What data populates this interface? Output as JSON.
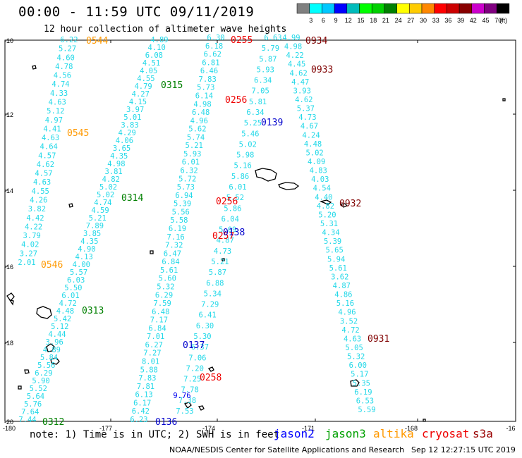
{
  "header": {
    "title": "00:00 - 11:59 UTC 09/11/2019",
    "subtitle": "12 hour collection of altimeter wave heights"
  },
  "colorbar": {
    "colors": [
      "#808080",
      "#00ffff",
      "#00c8ff",
      "#0000ff",
      "#00bbbb",
      "#00ff00",
      "#00d000",
      "#008000",
      "#ffff00",
      "#ffcc00",
      "#ff8800",
      "#ff0000",
      "#cc0000",
      "#880000",
      "#cc00cc",
      "#800080",
      "#000000"
    ],
    "labels": [
      "3",
      "6",
      "9",
      "12",
      "15",
      "18",
      "21",
      "24",
      "27",
      "30",
      "33",
      "36",
      "39",
      "42",
      "45",
      "70",
      "(ft)"
    ]
  },
  "axes": {
    "lon_labels": [
      "-180",
      "-177",
      "-174",
      "-171",
      "-168",
      "-16"
    ],
    "lat_labels": [
      "-10",
      "-12",
      "-14",
      "-16",
      "-18",
      "-20"
    ]
  },
  "tracks": [
    {
      "name": "track-A",
      "color": "#22d8e8",
      "values": [
        "6.22",
        "5.27",
        "4.60",
        "4.78",
        "4.56",
        "4.74",
        "4.33",
        "4.63",
        "5.12",
        "4.97",
        "4.41",
        "4.63",
        "4.64",
        "4.57",
        "4.62",
        "4.57",
        "4.63",
        "4.55",
        "4.26",
        "3.82",
        "4.42",
        "4.22",
        "3.79",
        "4.02",
        "3.27",
        "2.01"
      ]
    },
    {
      "name": "track-B",
      "color": "#22d8e8",
      "values": [
        "4.89",
        "4.10",
        "6.08",
        "4.51",
        "4.05",
        "4.55",
        "4.79",
        "4.27",
        "4.15",
        "3.97",
        "5.01",
        "3.83",
        "4.29",
        "4.06",
        "3.65",
        "4.35",
        "4.98",
        "3.81",
        "4.82",
        "5.02",
        "5.02",
        "4.74",
        "4.59",
        "5.21",
        "7.89",
        "3.85",
        "4.35",
        "4.90",
        "4.13",
        "4.00",
        "5.57",
        "6.03",
        "5.50",
        "6.01",
        "4.72",
        "4.48",
        "5.42",
        "5.12",
        "4.44",
        "3.96",
        "4.89",
        "5.84",
        "5.56",
        "6.29",
        "5.90",
        "5.52",
        "5.64",
        "5.76",
        "7.64",
        "7.44"
      ]
    },
    {
      "name": "track-C",
      "color": "#22d8e8",
      "values": [
        "6.30",
        "6.18",
        "6.62",
        "6.81",
        "6.46",
        "7.83",
        "5.73",
        "6.14",
        "4.98",
        "6.48",
        "4.96",
        "5.62",
        "5.74",
        "5.21",
        "5.93",
        "6.01",
        "6.32",
        "5.72",
        "5.73",
        "6.94",
        "5.39",
        "5.56",
        "5.58",
        "6.19",
        "7.16",
        "7.32",
        "6.47",
        "6.84",
        "5.61",
        "5.60",
        "5.32",
        "6.29",
        "7.59",
        "6.48",
        "7.17",
        "6.84",
        "7.01",
        "6.27",
        "7.27",
        "8.01",
        "5.88",
        "7.83",
        "7.81",
        "6.13",
        "6.17",
        "6.42",
        "6.23"
      ]
    },
    {
      "name": "track-D",
      "color": "#22d8e8",
      "values": [
        "6.63",
        "5.79",
        "5.87",
        "5.93",
        "6.34",
        "7.05",
        "5.81",
        "6.34",
        "5.25",
        "5.46",
        "5.02",
        "5.98",
        "5.16",
        "5.86",
        "6.01",
        "5.52",
        "5.86",
        "6.04",
        "5.09",
        "4.87",
        "4.73",
        "5.21",
        "5.87",
        "6.88",
        "5.34",
        "7.29",
        "6.41",
        "6.30",
        "5.30",
        "6.37",
        "7.06",
        "7.20",
        "7.25",
        "7.78",
        "7.38",
        "7.53"
      ]
    },
    {
      "name": "track-E",
      "color": "#22d8e8",
      "values": [
        "4.99",
        "4.98",
        "4.22",
        "4.45",
        "4.62",
        "4.47",
        "3.93",
        "4.62",
        "5.37",
        "4.73",
        "4.67",
        "4.24",
        "4.48",
        "5.02",
        "4.09",
        "4.83",
        "4.03",
        "4.54",
        "4.40",
        "4.82",
        "5.20",
        "5.31",
        "4.34",
        "5.39",
        "5.65",
        "5.94",
        "5.61",
        "3.62",
        "4.87",
        "4.86",
        "5.16",
        "4.96",
        "3.52",
        "4.72",
        "4.63",
        "5.05",
        "5.32",
        "6.00",
        "5.17",
        "5.35",
        "6.19",
        "6.53",
        "5.59"
      ]
    }
  ],
  "track_blue_values": [
    "9.76"
  ],
  "time_labels": [
    {
      "text": "0544",
      "color": "#ff9900"
    },
    {
      "text": "0545",
      "color": "#ff9900"
    },
    {
      "text": "0546",
      "color": "#ff9900"
    },
    {
      "text": "0315",
      "color": "#008000"
    },
    {
      "text": "0314",
      "color": "#008000"
    },
    {
      "text": "0313",
      "color": "#008000"
    },
    {
      "text": "0312",
      "color": "#008000"
    },
    {
      "text": "0255",
      "color": "#ee0000"
    },
    {
      "text": "0256",
      "color": "#ee0000"
    },
    {
      "text": "0256",
      "color": "#ee0000"
    },
    {
      "text": "0257",
      "color": "#ee0000"
    },
    {
      "text": "0258",
      "color": "#ee0000"
    },
    {
      "text": "0139",
      "color": "#0000cc"
    },
    {
      "text": "0138",
      "color": "#0000cc"
    },
    {
      "text": "0137",
      "color": "#0000cc"
    },
    {
      "text": "0136",
      "color": "#0000cc"
    },
    {
      "text": "0934",
      "color": "#800000"
    },
    {
      "text": "0933",
      "color": "#800000"
    },
    {
      "text": "0932",
      "color": "#800000"
    },
    {
      "text": "0931",
      "color": "#800000"
    }
  ],
  "footer": {
    "note": "note: 1) Time is in UTC; 2) SWH is in feet",
    "sources": [
      {
        "text": "jason2",
        "color": "#0000ff"
      },
      {
        "text": "jason3",
        "color": "#00a000"
      },
      {
        "text": "altika",
        "color": "#ff9900"
      },
      {
        "text": "cryosat",
        "color": "#ee0000"
      },
      {
        "text": "s3a",
        "color": "#990000"
      }
    ],
    "credit": "NOAA/NESDIS Center for Satellite Applications and Research",
    "timestamp": "Sep 12 12:27:15 UTC 2019"
  }
}
